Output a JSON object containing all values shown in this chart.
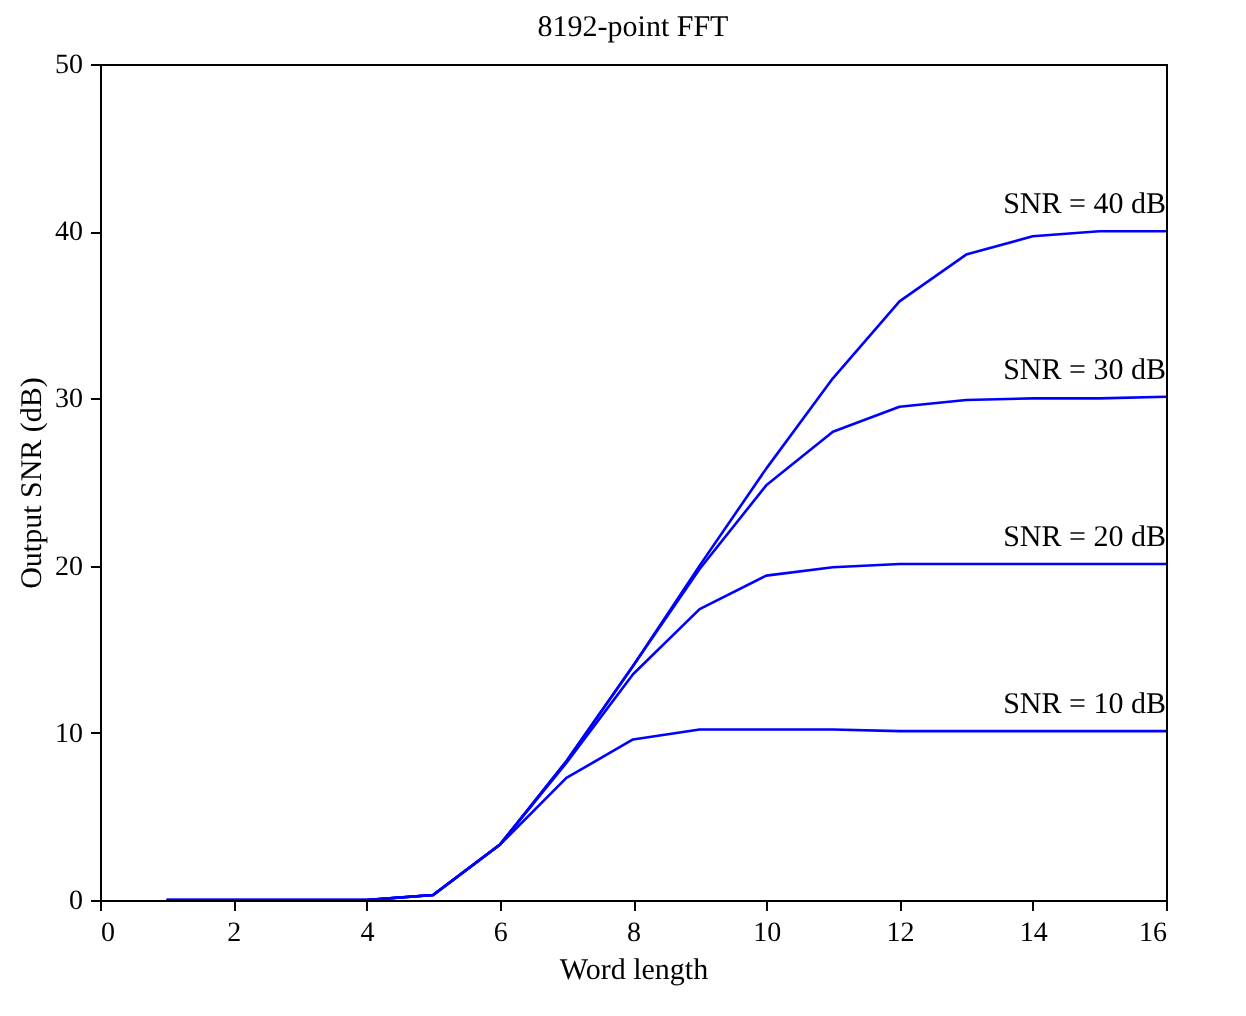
{
  "chart_data": {
    "type": "line",
    "title": "8192-point FFT",
    "xlabel": "Word length",
    "ylabel": "Output SNR (dB)",
    "x": [
      1,
      2,
      3,
      4,
      5,
      6,
      7,
      8,
      9,
      10,
      11,
      12,
      13,
      14,
      15,
      16
    ],
    "series": [
      {
        "name": "SNR = 40 dB",
        "color": "#0000ff",
        "values": [
          0,
          0,
          0,
          0,
          0.3,
          3.3,
          8.3,
          14,
          20,
          25.8,
          31.2,
          35.8,
          38.6,
          39.7,
          40,
          40
        ]
      },
      {
        "name": "SNR = 30 dB",
        "color": "#0000ff",
        "values": [
          0,
          0,
          0,
          0,
          0.3,
          3.3,
          8.3,
          14,
          19.8,
          24.8,
          28,
          29.5,
          29.9,
          30,
          30,
          30.1
        ]
      },
      {
        "name": "SNR = 20 dB",
        "color": "#0000ff",
        "values": [
          0,
          0,
          0,
          0,
          0.3,
          3.3,
          8.2,
          13.5,
          17.4,
          19.4,
          19.9,
          20.1,
          20.1,
          20.1,
          20.1,
          20.1
        ]
      },
      {
        "name": "SNR = 10 dB",
        "color": "#0000ff",
        "values": [
          0,
          0,
          0,
          0,
          0.3,
          3.3,
          7.3,
          9.6,
          10.2,
          10.2,
          10.2,
          10.1,
          10.1,
          10.1,
          10.1,
          10.1
        ]
      }
    ],
    "xlim": [
      0,
      16
    ],
    "xticks": [
      0,
      2,
      4,
      6,
      8,
      10,
      12,
      14,
      16
    ],
    "ylim": [
      0,
      50
    ],
    "yticks": [
      0,
      10,
      20,
      30,
      40,
      50
    ],
    "grid": false,
    "legend": false,
    "marker": "none",
    "line_style": "solid"
  }
}
